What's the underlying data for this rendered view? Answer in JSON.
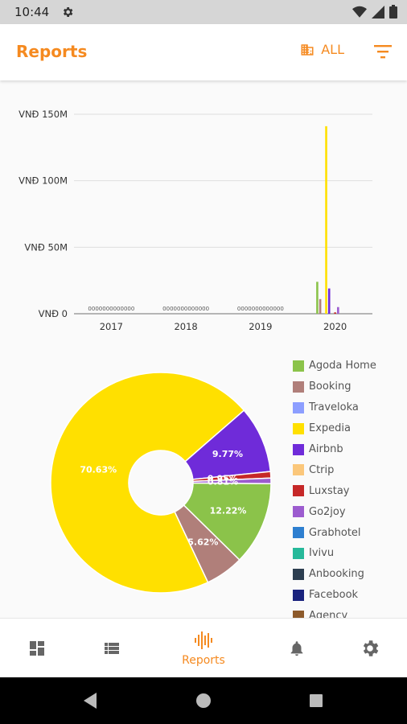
{
  "status": {
    "time": "10:44"
  },
  "app": {
    "title": "Reports",
    "scope_label": "ALL"
  },
  "colors": {
    "accent": "#f58a20"
  },
  "chart_data": [
    {
      "type": "bar",
      "categories": [
        "2017",
        "2018",
        "2019",
        "2020"
      ],
      "y_tick_labels": [
        "VNĐ 0",
        "VNĐ 50M",
        "VNĐ 100M",
        "VNĐ 150M"
      ],
      "ylim": [
        0,
        150000000
      ],
      "grid": true,
      "zero_label": "0000000000000",
      "series": [
        {
          "name": "Agoda Home",
          "values": [
            0,
            0,
            0,
            24000000
          ]
        },
        {
          "name": "Booking",
          "values": [
            0,
            0,
            0,
            11000000
          ]
        },
        {
          "name": "Traveloka",
          "values": [
            0,
            0,
            0,
            0
          ]
        },
        {
          "name": "Expedia",
          "values": [
            0,
            0,
            0,
            141000000
          ]
        },
        {
          "name": "Airbnb",
          "values": [
            0,
            0,
            0,
            19000000
          ]
        },
        {
          "name": "Ctrip",
          "values": [
            0,
            0,
            0,
            0
          ]
        },
        {
          "name": "Luxstay",
          "values": [
            0,
            0,
            0,
            1000000
          ]
        },
        {
          "name": "Go2joy",
          "values": [
            0,
            0,
            0,
            5000000
          ]
        },
        {
          "name": "Grabhotel",
          "values": [
            0,
            0,
            0,
            0
          ]
        },
        {
          "name": "Ivivu",
          "values": [
            0,
            0,
            0,
            0
          ]
        },
        {
          "name": "Anbooking",
          "values": [
            0,
            0,
            0,
            0
          ]
        },
        {
          "name": "Facebook",
          "values": [
            0,
            0,
            0,
            0
          ]
        },
        {
          "name": "Agency",
          "values": [
            0,
            0,
            0,
            0
          ]
        }
      ]
    },
    {
      "type": "pie",
      "slices": [
        {
          "name": "Agoda Home",
          "value": 12.22,
          "label": "12.22%"
        },
        {
          "name": "Booking",
          "value": 5.62,
          "label": "5.62%"
        },
        {
          "name": "Expedia",
          "value": 70.63,
          "label": "70.63%"
        },
        {
          "name": "Airbnb",
          "value": 9.77,
          "label": "9.77%"
        },
        {
          "name": "Luxstay",
          "value": 0.95,
          "label": "0.95%"
        },
        {
          "name": "Go2joy",
          "value": 0.81,
          "label": "0.81%"
        }
      ]
    }
  ],
  "legend": [
    {
      "label": "Agoda Home",
      "color": "#8bc34a"
    },
    {
      "label": "Booking",
      "color": "#b07f7a"
    },
    {
      "label": "Traveloka",
      "color": "#8c9eff"
    },
    {
      "label": "Expedia",
      "color": "#ffe000"
    },
    {
      "label": "Airbnb",
      "color": "#6f2bd9"
    },
    {
      "label": "Ctrip",
      "color": "#fbc77b"
    },
    {
      "label": "Luxstay",
      "color": "#c62828"
    },
    {
      "label": "Go2joy",
      "color": "#9c5ccf"
    },
    {
      "label": "Grabhotel",
      "color": "#2e7fd0"
    },
    {
      "label": "Ivivu",
      "color": "#26b99a"
    },
    {
      "label": "Anbooking",
      "color": "#2c3e50"
    },
    {
      "label": "Facebook",
      "color": "#1a237e"
    },
    {
      "label": "Agency",
      "color": "#8d5a2b"
    }
  ],
  "nav": {
    "reports_label": "Reports"
  }
}
